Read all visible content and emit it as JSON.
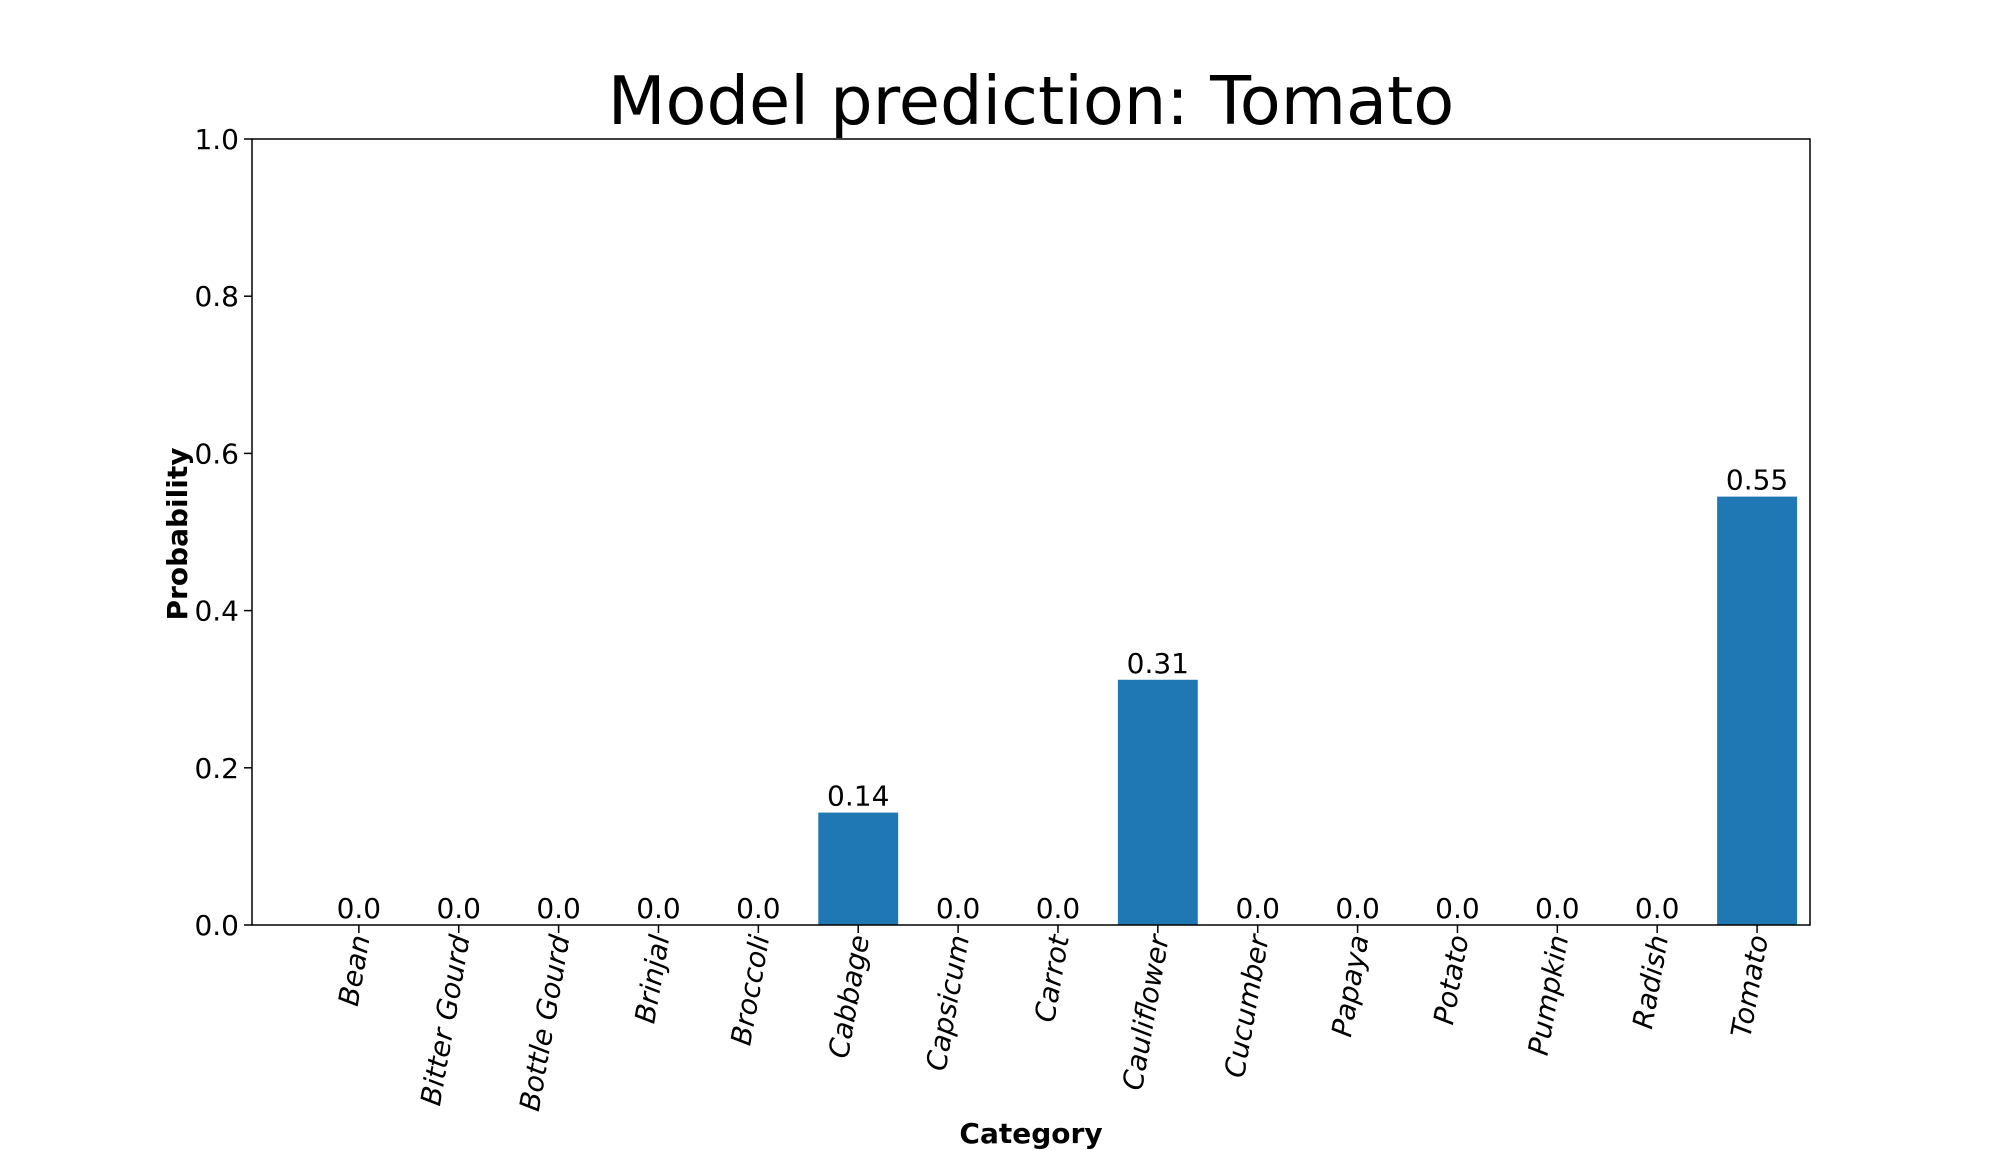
{
  "chart_data": {
    "type": "bar",
    "title": "Model prediction: Tomato",
    "xlabel": "Category",
    "ylabel": "Probability",
    "ylim": [
      0,
      1.0
    ],
    "yticks": [
      "0.0",
      "0.2",
      "0.4",
      "0.6",
      "0.8",
      "1.0"
    ],
    "grid": false,
    "bar_color": "#1f77b4",
    "categories": [
      "Bean",
      "Bitter Gourd",
      "Bottle Gourd",
      "Brinjal",
      "Broccoli",
      "Cabbage",
      "Capsicum",
      "Carrot",
      "Cauliflower",
      "Cucumber",
      "Papaya",
      "Potato",
      "Pumpkin",
      "Radish",
      "Tomato"
    ],
    "values": [
      0.0,
      0.0,
      0.0,
      0.0,
      0.0,
      0.143,
      0.0,
      0.0,
      0.312,
      0.0,
      0.0,
      0.0,
      0.0,
      0.0,
      0.545
    ],
    "data_labels": [
      "0.0",
      "0.0",
      "0.0",
      "0.0",
      "0.0",
      "0.14",
      "0.0",
      "0.0",
      "0.31",
      "0.0",
      "0.0",
      "0.0",
      "0.0",
      "0.0",
      "0.55"
    ]
  }
}
